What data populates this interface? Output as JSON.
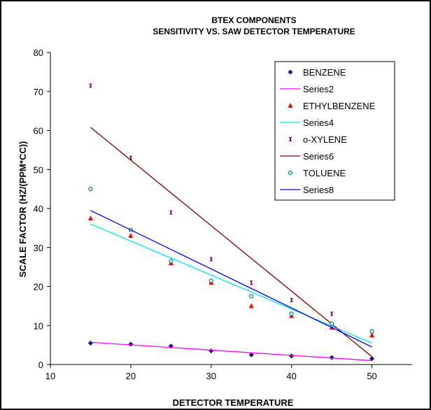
{
  "chart_data": {
    "type": "scatter",
    "title": "BTEX COMPONENTS",
    "subtitle": "SENSITIVITY VS. SAW DETECTOR TEMPERATURE",
    "xlabel": "DETECTOR TEMPERATURE",
    "ylabel": "SCALE FACTOR (HZ/(PPM*CC))",
    "xlim": [
      10,
      55
    ],
    "ylim": [
      0,
      80
    ],
    "xticks": [
      "10",
      "20",
      "30",
      "40",
      "50"
    ],
    "yticks": [
      "0",
      "10",
      "20",
      "30",
      "40",
      "50",
      "60",
      "70",
      "80"
    ],
    "legend_position": "top-right",
    "series": [
      {
        "name": "BENZENE",
        "kind": "points",
        "marker": "diamond",
        "color": "#000080",
        "x": [
          15,
          20,
          25,
          30,
          35,
          40,
          45,
          50
        ],
        "y": [
          5.5,
          5.2,
          4.7,
          3.5,
          2.5,
          2.2,
          1.8,
          1.5
        ]
      },
      {
        "name": "Series2",
        "kind": "line",
        "color": "#ff00ff",
        "x": [
          15,
          50
        ],
        "y": [
          5.7,
          1.0
        ]
      },
      {
        "name": "ETHYLBENZENE",
        "kind": "points",
        "marker": "triangle",
        "color": "#ff0000",
        "x": [
          15,
          20,
          25,
          30,
          35,
          40,
          45,
          50
        ],
        "y": [
          37.5,
          33.0,
          26.0,
          21.0,
          15.0,
          12.5,
          9.5,
          7.5
        ]
      },
      {
        "name": "Series4",
        "kind": "line",
        "color": "#00e5e5",
        "x": [
          15,
          50
        ],
        "y": [
          36.0,
          5.5
        ]
      },
      {
        "name": "o-XYLENE",
        "kind": "points",
        "marker": "bar",
        "color": "#800080",
        "x": [
          15,
          20,
          25,
          30,
          35,
          40,
          45,
          50
        ],
        "y": [
          71.5,
          53.0,
          39.0,
          27.0,
          21.0,
          16.5,
          13.0,
          8.5
        ]
      },
      {
        "name": "Series6",
        "kind": "line",
        "color": "#800000",
        "x": [
          15,
          50
        ],
        "y": [
          60.8,
          2.0
        ]
      },
      {
        "name": "TOLUENE",
        "kind": "points",
        "marker": "circle",
        "color": "#008080",
        "x": [
          15,
          20,
          25,
          30,
          35,
          40,
          45,
          50
        ],
        "y": [
          45.0,
          34.5,
          26.5,
          21.5,
          17.5,
          13.0,
          10.5,
          8.5
        ]
      },
      {
        "name": "Series8",
        "kind": "line",
        "color": "#0000ff",
        "x": [
          15,
          50
        ],
        "y": [
          39.5,
          4.5
        ]
      }
    ]
  }
}
